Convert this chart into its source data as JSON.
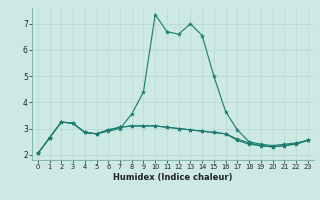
{
  "title": "",
  "xlabel": "Humidex (Indice chaleur)",
  "ylabel": "",
  "bg_color": "#cce9e4",
  "line_color": "#1a7a6e",
  "grid_color": "#b8d9d4",
  "xlim": [
    -0.5,
    23.5
  ],
  "ylim": [
    1.8,
    7.6
  ],
  "xticks": [
    0,
    1,
    2,
    3,
    4,
    5,
    6,
    7,
    8,
    9,
    10,
    11,
    12,
    13,
    14,
    15,
    16,
    17,
    18,
    19,
    20,
    21,
    22,
    23
  ],
  "yticks": [
    2,
    3,
    4,
    5,
    6,
    7
  ],
  "series": [
    {
      "x": [
        0,
        1,
        2,
        3,
        4,
        5,
        6,
        7,
        8,
        9,
        10,
        11,
        12,
        13,
        14,
        15,
        16,
        17,
        18,
        19,
        20,
        21,
        22,
        23
      ],
      "y": [
        2.05,
        2.65,
        3.25,
        3.2,
        2.85,
        2.8,
        2.9,
        3.0,
        3.55,
        4.4,
        7.35,
        6.7,
        6.6,
        7.0,
        6.55,
        5.0,
        3.65,
        2.95,
        2.5,
        2.4,
        2.35,
        2.4,
        2.45,
        2.55
      ]
    },
    {
      "x": [
        0,
        1,
        2,
        3,
        4,
        5,
        6,
        7,
        8,
        9,
        10,
        11,
        12,
        13,
        14,
        15,
        16,
        17,
        18,
        19,
        20,
        21,
        22,
        23
      ],
      "y": [
        2.05,
        2.65,
        3.25,
        3.2,
        2.85,
        2.8,
        2.95,
        3.05,
        3.1,
        3.1,
        3.1,
        3.05,
        3.0,
        2.95,
        2.9,
        2.85,
        2.8,
        2.55,
        2.4,
        2.35,
        2.3,
        2.35,
        2.4,
        2.55
      ]
    },
    {
      "x": [
        0,
        1,
        2,
        3,
        4,
        5,
        6,
        7,
        8,
        9,
        10,
        11,
        12,
        13,
        14,
        15,
        16,
        17,
        18,
        19,
        20,
        21,
        22,
        23
      ],
      "y": [
        2.05,
        2.65,
        3.25,
        3.2,
        2.85,
        2.8,
        2.95,
        3.05,
        3.1,
        3.1,
        3.1,
        3.05,
        3.0,
        2.95,
        2.9,
        2.85,
        2.8,
        2.6,
        2.45,
        2.35,
        2.3,
        2.35,
        2.42,
        2.55
      ]
    }
  ]
}
